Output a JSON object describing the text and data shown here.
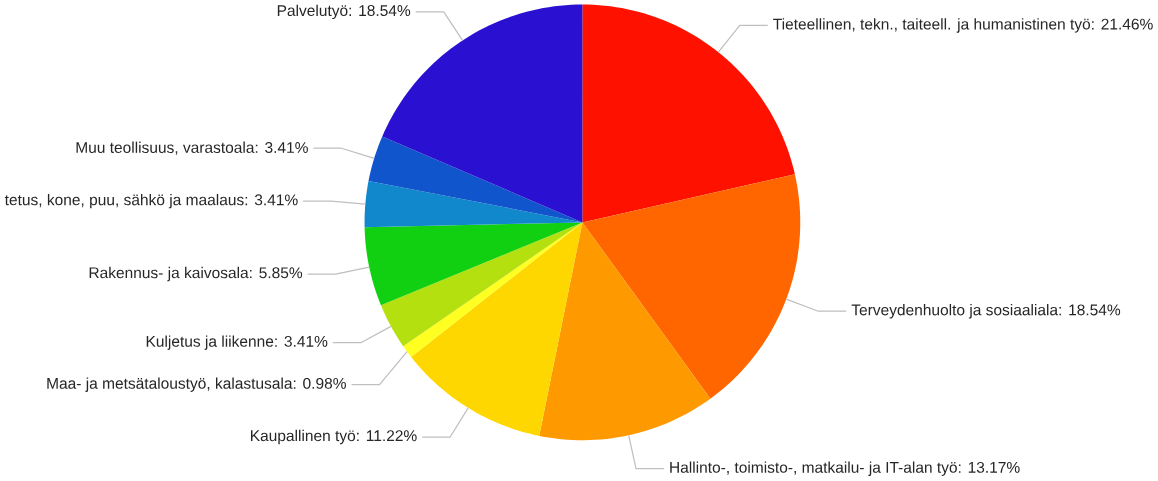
{
  "chart_data": {
    "type": "pie",
    "categories": [
      "Tieteellinen, tekn., taiteell. ja humanistinen työ: 21.46%",
      "Terveydenhuolto ja sosiaaliala: 18.54%",
      "Hallinto-, toimisto-, matkailu- ja IT-alan työ: 13.17%",
      "Kaupallinen työ: 11.22%",
      "Maa- ja metsätaloustyö, kalastusala: 0.98%",
      "Kuljetus ja liikenne: 3.41%",
      "Rakennus- ja kaivosala: 5.85%",
      "tetus, kone, puu, sähkö ja maalaus: 3.41%",
      "Muu teollisuus, varastoala: 3.41%",
      "Palvelutyö: 18.54%"
    ],
    "values": [
      21.46,
      18.54,
      13.17,
      11.22,
      0.98,
      3.41,
      5.85,
      3.41,
      3.41,
      18.54
    ],
    "colors": [
      "#ff1100",
      "#ff6600",
      "#ff9900",
      "#ffd700",
      "#ffff22",
      "#b5e010",
      "#11d011",
      "#1188cc",
      "#1155cc",
      "#2a10d0"
    ]
  }
}
